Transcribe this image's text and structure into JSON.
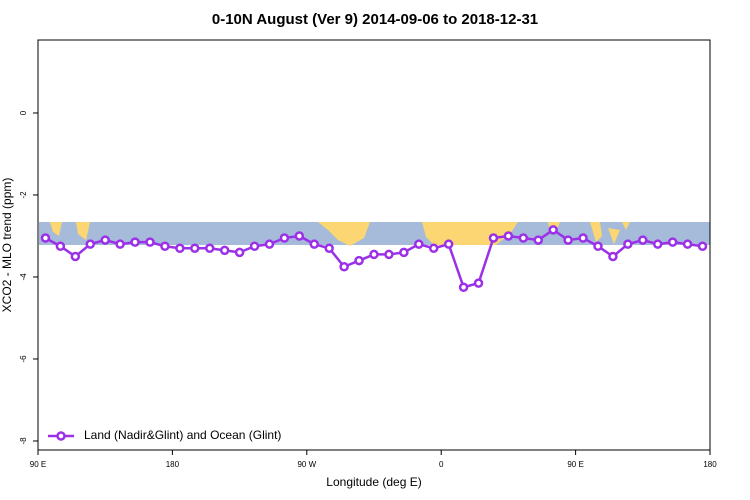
{
  "chart_data": {
    "type": "line",
    "title": "0-10N August (Ver 9)   2014-09-06 to 2018-12-31",
    "x_label": "Longitude (deg E)",
    "y_label": "XCO2 - MLO trend (ppm)",
    "xlim": [
      90,
      540
    ],
    "ylim": [
      -8.22,
      1.78
    ],
    "xticks": [
      {
        "value": 90,
        "label": "90 E"
      },
      180,
      {
        "value": 270,
        "label": "90 W"
      },
      {
        "value": 360,
        "label": "0"
      },
      {
        "value": 450,
        "label": "90 E"
      },
      {
        "value": 540,
        "label": "180"
      }
    ],
    "yticks": [
      -8,
      -6,
      -4,
      -2,
      0
    ],
    "legend": "bottom left",
    "x": [
      95,
      105,
      115,
      125,
      135,
      145,
      155,
      165,
      175,
      185,
      195,
      205,
      215,
      225,
      235,
      245,
      255,
      265,
      275,
      285,
      295,
      305,
      315,
      325,
      335,
      345,
      355,
      365,
      375,
      385,
      395,
      405,
      415,
      425,
      435,
      445,
      455,
      465,
      475,
      485,
      495,
      505,
      515,
      525,
      535
    ],
    "series": [
      {
        "name": "Land (Nadir&Glint) and Ocean (Glint)",
        "color": "#9b30e8",
        "values": [
          -3.05,
          -3.25,
          -3.5,
          -3.2,
          -3.1,
          -3.2,
          -3.15,
          -3.15,
          -3.25,
          -3.3,
          -3.3,
          -3.3,
          -3.35,
          -3.4,
          -3.25,
          -3.2,
          -3.05,
          -3.0,
          -3.2,
          -3.3,
          -3.75,
          -3.6,
          -3.45,
          -3.45,
          -3.4,
          -3.2,
          -3.3,
          -3.2,
          -4.25,
          -4.15,
          -3.05,
          -3.0,
          -3.05,
          -3.1,
          -2.85,
          -3.1,
          -3.05,
          -3.25,
          -3.5,
          -3.2,
          -3.1,
          -3.2,
          -3.15,
          -3.2,
          -3.25
        ]
      }
    ]
  }
}
